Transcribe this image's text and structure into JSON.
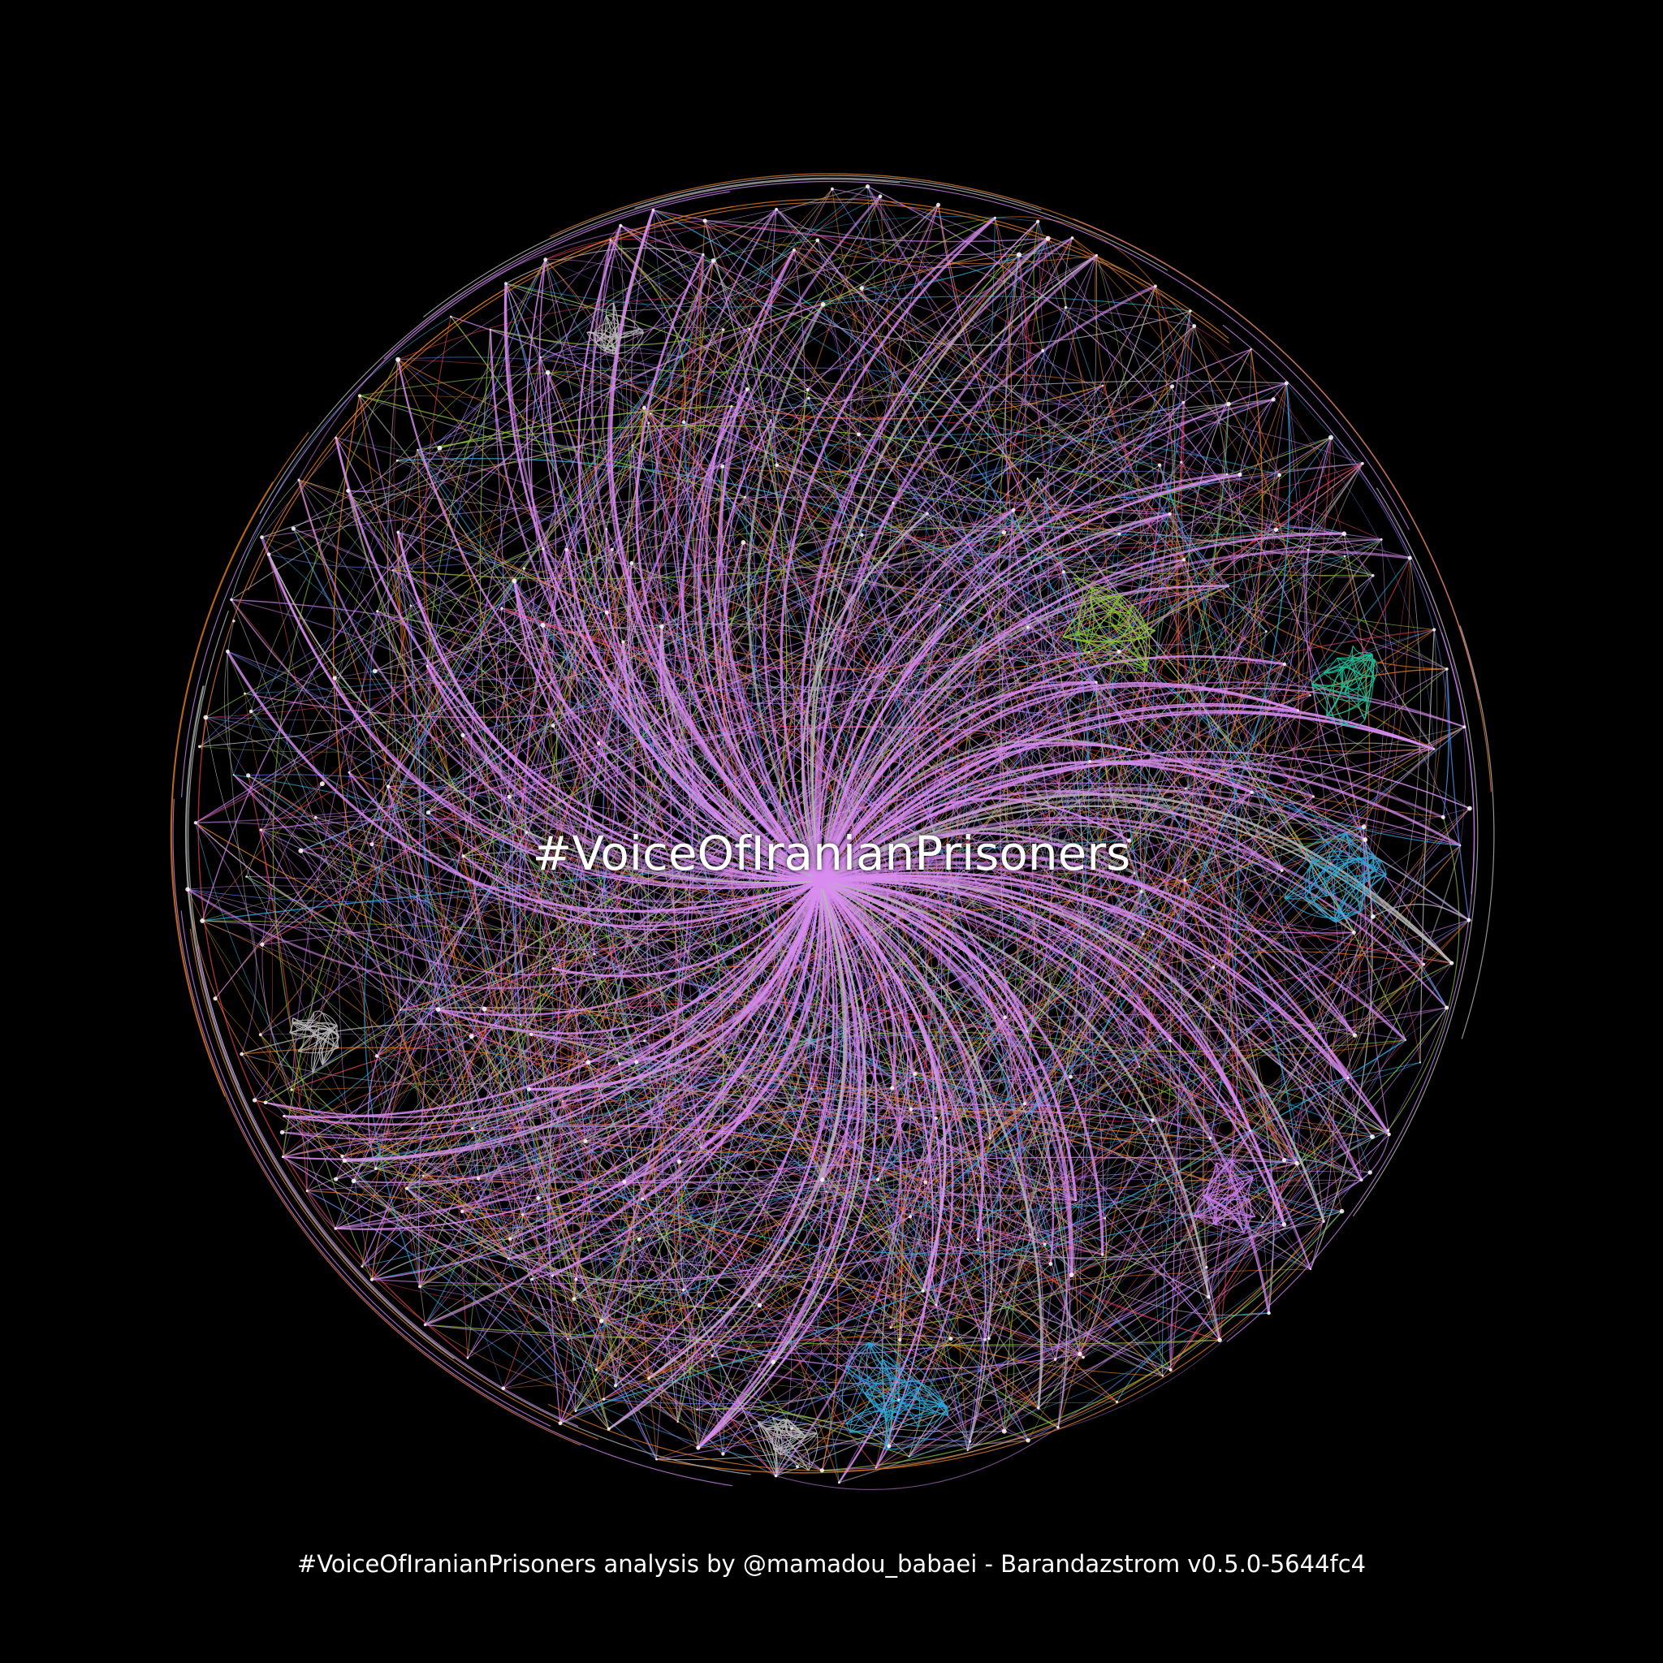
{
  "graph": {
    "hub_label": "#VoiceOfIranianPrisoners",
    "caption": "#VoiceOfIranianPrisoners analysis by @mamadou_babaei - Barandazstrom v0.5.0-5644fc4",
    "background": "#000000",
    "hub_color": "#d98cf0",
    "community_colors": {
      "hub": "#c77ee6",
      "orange": "#e07a22",
      "gray": "#b8b8b8",
      "teal": "#1fbf9a",
      "cyan": "#2aa8d8",
      "green": "#8cc43a",
      "red": "#e0405a",
      "blue": "#5a7de0"
    }
  }
}
